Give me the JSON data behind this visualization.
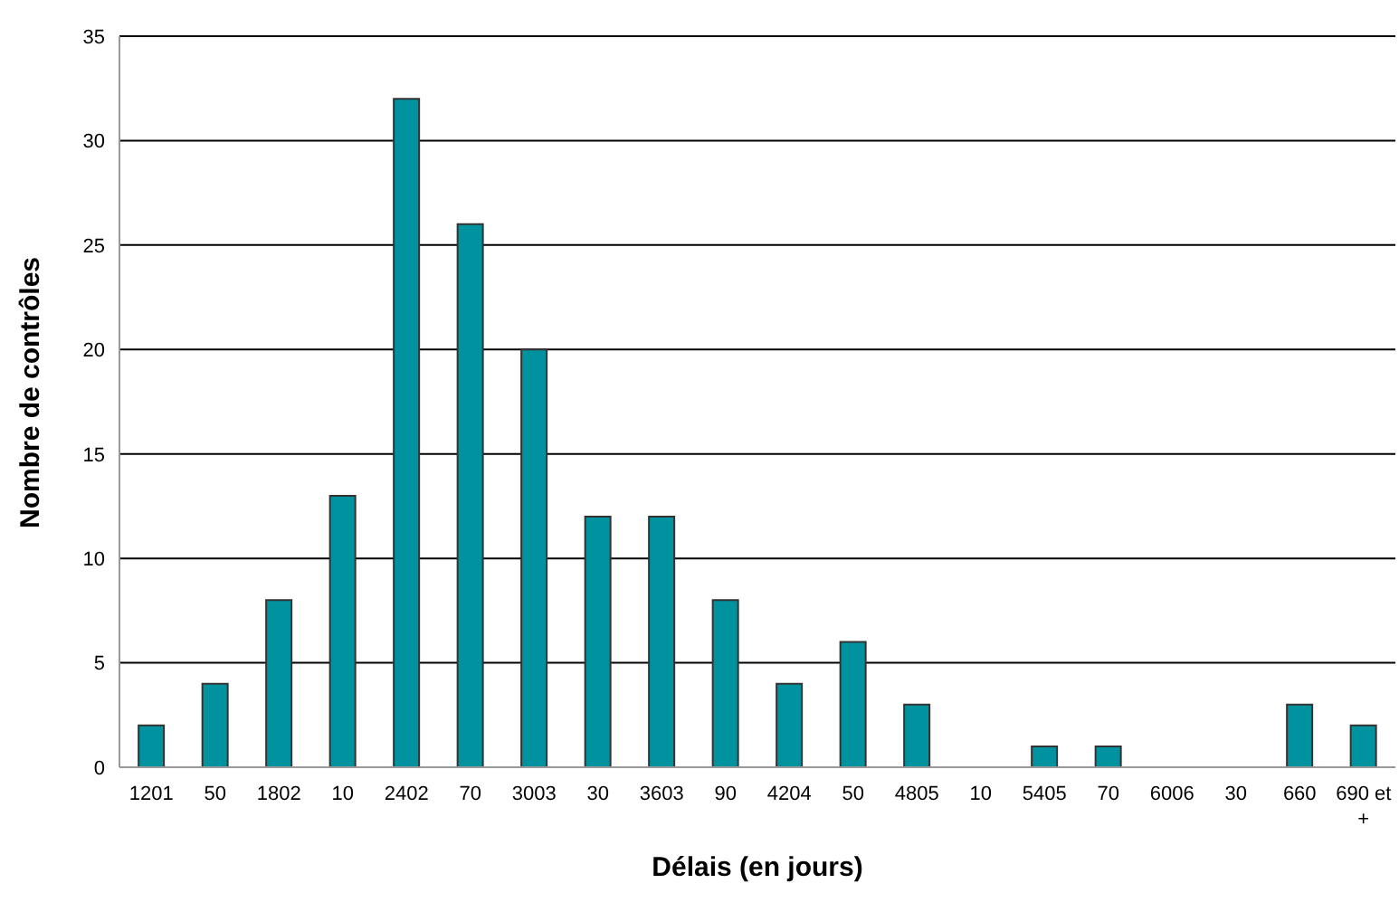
{
  "chart_data": {
    "type": "bar",
    "xlabel": "Délais (en jours)",
    "ylabel": "Nombre de contrôles",
    "categories": [
      "1201",
      "50",
      "1802",
      "10",
      "2402",
      "70",
      "3003",
      "30",
      "3603",
      "90",
      "4204",
      "50",
      "4805",
      "10",
      "5405",
      "70",
      "6006",
      "30",
      "660",
      "690 et +"
    ],
    "values": [
      2,
      4,
      8,
      13,
      32,
      26,
      20,
      12,
      12,
      8,
      4,
      6,
      3,
      0,
      1,
      1,
      0,
      0,
      3,
      2
    ],
    "color": "#00929f",
    "ylim": [
      0,
      35
    ],
    "yticks": [
      0,
      5,
      10,
      15,
      20,
      25,
      30,
      35
    ],
    "grid": "y",
    "legend": false
  }
}
